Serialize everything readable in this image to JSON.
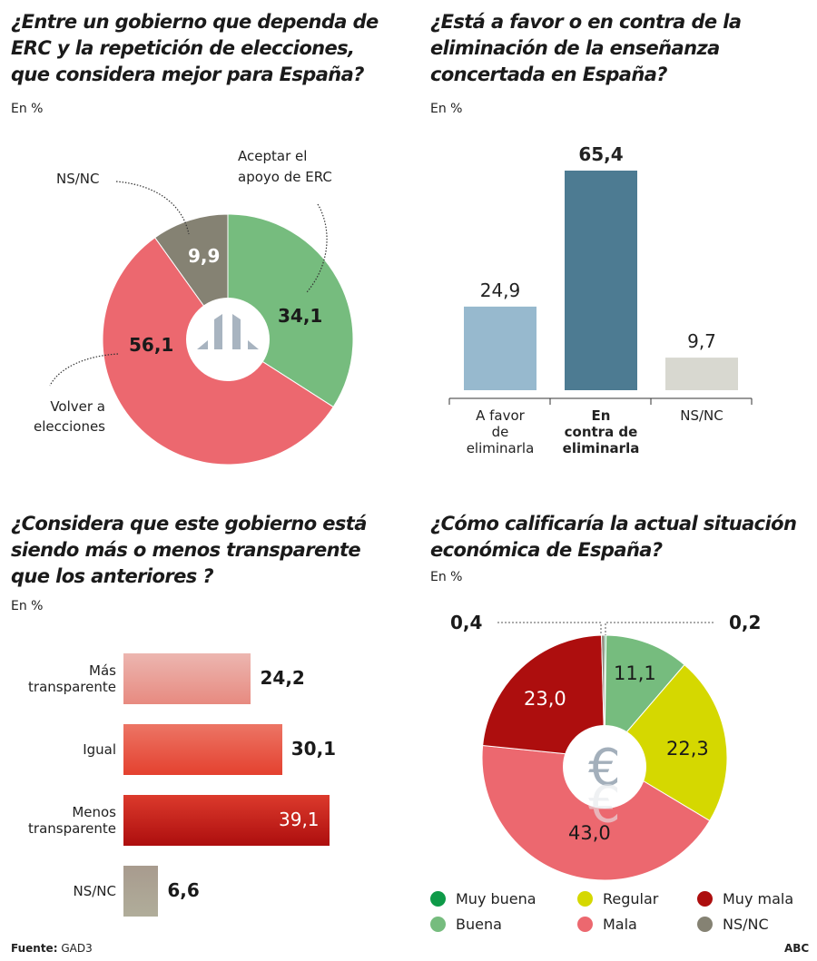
{
  "chart_data": [
    {
      "type": "pie",
      "variant": "donut",
      "title": "¿Entre un gobierno que dependa de ERC y la repetición de elecciones, que considera mejor para España?",
      "unit": "En %",
      "center_icon": "erc-logo-icon",
      "slices": [
        {
          "label": "Aceptar el apoyo de ERC",
          "value": 34.1,
          "display": "34,1",
          "color": "#76bc7e",
          "text_color": "#1a1a1a"
        },
        {
          "label": "Volver a elecciones",
          "value": 56.1,
          "display": "56,1",
          "color": "#ec686f",
          "text_color": "#1a1a1a"
        },
        {
          "label": "NS/NC",
          "value": 9.9,
          "display": "9,9",
          "color": "#858273",
          "text_color": "#ffffff"
        }
      ]
    },
    {
      "type": "bar",
      "title": "¿Está a favor o en contra de la eliminación de la enseñanza concertada en España?",
      "unit": "En %",
      "categories": [
        "A favor de eliminarla",
        "En contra de eliminarla",
        "NS/NC"
      ],
      "category_lines": [
        [
          "A favor",
          "de",
          "eliminarla"
        ],
        [
          "En",
          "contra de",
          "eliminarla"
        ],
        [
          "NS/NC"
        ]
      ],
      "values": [
        24.9,
        65.4,
        9.7
      ],
      "display": [
        "24,9",
        "65,4",
        "9,7"
      ],
      "colors": [
        "#97b9ce",
        "#4d7b92",
        "#d8d8d0"
      ],
      "highlight_index": 1,
      "ylim": [
        0,
        70
      ]
    },
    {
      "type": "bar",
      "orientation": "horizontal",
      "title": "¿Considera que este gobierno está siendo más o menos transparente que los anteriores ?",
      "unit": "En %",
      "categories": [
        "Más transparente",
        "Igual",
        "Menos transparente",
        "NS/NC"
      ],
      "category_lines": [
        "Más\ntransparente",
        "Igual",
        "Menos\ntransparente",
        "NS/NC"
      ],
      "values": [
        24.2,
        30.1,
        39.1,
        6.6
      ],
      "display": [
        "24,2",
        "30,1",
        "39,1",
        "6,6"
      ],
      "colors": [
        [
          "#ecb6b0",
          "#e78a80"
        ],
        [
          "#ec7565",
          "#e4412f"
        ],
        [
          "#dc3a2c",
          "#ad0e0e"
        ],
        [
          "#a89b8e",
          "#b0ad9a"
        ]
      ],
      "value_inside": [
        false,
        false,
        true,
        false
      ]
    },
    {
      "type": "pie",
      "variant": "donut",
      "title": "¿Cómo calificaría la actual situación económica de España?",
      "unit": "En %",
      "center_icon": "euro-icon",
      "slices": [
        {
          "label": "Muy buena",
          "value": 0.2,
          "display": "0,2",
          "color": "#0e9a48",
          "text_color": "#1a1a1a",
          "external": true
        },
        {
          "label": "Buena",
          "value": 11.1,
          "display": "11,1",
          "color": "#76bc7e",
          "text_color": "#1a1a1a"
        },
        {
          "label": "Regular",
          "value": 22.3,
          "display": "22,3",
          "color": "#d5d800",
          "text_color": "#1a1a1a"
        },
        {
          "label": "Mala",
          "value": 43.0,
          "display": "43,0",
          "color": "#ec686f",
          "text_color": "#1a1a1a"
        },
        {
          "label": "Muy mala",
          "value": 23.0,
          "display": "23,0",
          "color": "#ad0e0e",
          "text_color": "#ffffff"
        },
        {
          "label": "NS/NC",
          "value": 0.4,
          "display": "0,4",
          "color": "#858273",
          "text_color": "#1a1a1a",
          "external": true
        }
      ],
      "legend": [
        {
          "label": "Muy buena",
          "color": "#0e9a48"
        },
        {
          "label": "Regular",
          "color": "#d5d800"
        },
        {
          "label": "Muy mala",
          "color": "#ad0e0e"
        },
        {
          "label": "Buena",
          "color": "#76bc7e"
        },
        {
          "label": "Mala",
          "color": "#ec686f"
        },
        {
          "label": "NS/NC",
          "color": "#858273"
        }
      ],
      "legend_position": "bottom"
    }
  ],
  "titles": {
    "q1": "¿Entre un gobierno que dependa de\nERC y la repetición de elecciones,\nque considera mejor para España?",
    "q2": "¿Está a favor o en contra de la\neliminación de la enseñanza\nconcertada en España?",
    "q3": "¿Considera que este gobierno está\nsiendo más o menos transparente\nque los anteriores ?",
    "q4": "¿Cómo calificaría la actual situación\neconómica de España?"
  },
  "unit_label": "En %",
  "donut1_callouts": {
    "erc": [
      "Aceptar el",
      "apoyo de ERC"
    ],
    "nsnc": "NS/NC",
    "volver": [
      "Volver a",
      "elecciones"
    ]
  },
  "footer": {
    "source_label": "Fuente:",
    "source_value": "GAD3",
    "brand": "ABC"
  }
}
